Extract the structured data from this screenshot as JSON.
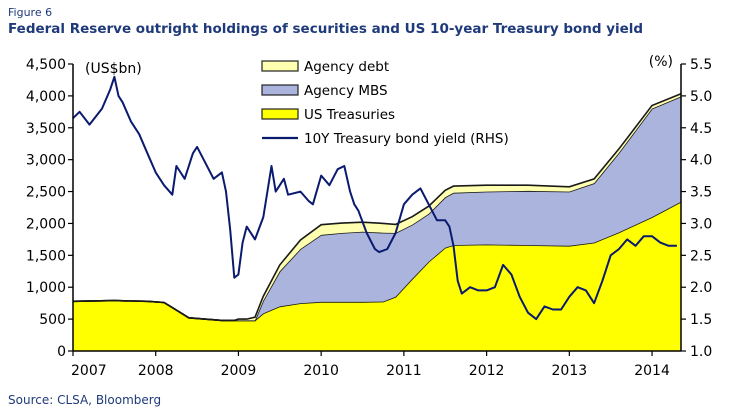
{
  "figure_label": "Figure 6",
  "title": "Federal Reserve outright holdings of securities and US 10-year Treasury bond yield",
  "source": "Source: CLSA, Bloomberg",
  "colors": {
    "treasuries": "#ffff00",
    "mbs": "#aab4dc",
    "agency_debt": "#ffffb0",
    "yield_line": "#0a1a6e",
    "axis": "#000000"
  },
  "chart_data": {
    "type": "area",
    "title": "Federal Reserve outright holdings of securities and US 10-year Treasury bond yield",
    "lhs_unit_label": "(US$bn)",
    "rhs_unit_label": "(%)",
    "ylim": [
      0,
      4500
    ],
    "y2lim": [
      1.0,
      5.5
    ],
    "xlim": [
      2007.0,
      2014.35
    ],
    "y_ticks": [
      "0",
      "500",
      "1,000",
      "1,500",
      "2,000",
      "2,500",
      "3,000",
      "3,500",
      "4,000",
      "4,500"
    ],
    "y2_ticks": [
      "1.0",
      "1.5",
      "2.0",
      "2.5",
      "3.0",
      "3.5",
      "4.0",
      "4.5",
      "5.0",
      "5.5"
    ],
    "x_ticks": [
      "2007",
      "2008",
      "2009",
      "2010",
      "2011",
      "2012",
      "2013",
      "2014"
    ],
    "legend": [
      "Agency debt",
      "Agency MBS",
      "US Treasuries",
      "10Y Treasury bond yield (RHS)"
    ],
    "x": [
      2007.0,
      2007.5,
      2007.9,
      2008.1,
      2008.2,
      2008.4,
      2008.8,
      2008.95,
      2009.0,
      2009.1,
      2009.2,
      2009.3,
      2009.5,
      2009.75,
      2010.0,
      2010.25,
      2010.5,
      2010.75,
      2010.9,
      2011.1,
      2011.3,
      2011.5,
      2011.6,
      2012.0,
      2012.5,
      2013.0,
      2013.3,
      2013.6,
      2014.0,
      2014.35
    ],
    "series": [
      {
        "name": "US Treasuries",
        "values": [
          780,
          790,
          780,
          760,
          680,
          520,
          480,
          480,
          480,
          480,
          480,
          590,
          700,
          750,
          770,
          770,
          770,
          775,
          850,
          1130,
          1400,
          1620,
          1660,
          1670,
          1660,
          1650,
          1700,
          1860,
          2100,
          2340
        ]
      },
      {
        "name": "Agency MBS",
        "values": [
          0,
          0,
          0,
          0,
          0,
          0,
          0,
          0,
          0,
          0,
          0,
          200,
          550,
          850,
          1050,
          1080,
          1100,
          1080,
          1000,
          850,
          750,
          790,
          820,
          830,
          850,
          850,
          930,
          1250,
          1700,
          1650
        ]
      },
      {
        "name": "Agency debt",
        "values": [
          0,
          0,
          0,
          0,
          0,
          0,
          0,
          0,
          20,
          20,
          50,
          70,
          100,
          140,
          160,
          155,
          150,
          145,
          135,
          125,
          120,
          110,
          105,
          100,
          90,
          75,
          68,
          60,
          50,
          45
        ]
      }
    ],
    "yield_rhs": {
      "name": "10Y Treasury bond yield (RHS)",
      "x": [
        2007.0,
        2007.08,
        2007.2,
        2007.35,
        2007.45,
        2007.5,
        2007.55,
        2007.6,
        2007.7,
        2007.8,
        2007.9,
        2008.0,
        2008.1,
        2008.2,
        2008.25,
        2008.35,
        2008.45,
        2008.5,
        2008.6,
        2008.7,
        2008.8,
        2008.85,
        2008.9,
        2008.95,
        2009.0,
        2009.05,
        2009.1,
        2009.2,
        2009.3,
        2009.4,
        2009.45,
        2009.55,
        2009.6,
        2009.75,
        2009.85,
        2009.9,
        2010.0,
        2010.1,
        2010.2,
        2010.28,
        2010.35,
        2010.4,
        2010.45,
        2010.55,
        2010.65,
        2010.7,
        2010.8,
        2010.9,
        2011.0,
        2011.1,
        2011.2,
        2011.3,
        2011.4,
        2011.5,
        2011.55,
        2011.6,
        2011.65,
        2011.7,
        2011.8,
        2011.9,
        2012.0,
        2012.1,
        2012.2,
        2012.3,
        2012.4,
        2012.5,
        2012.6,
        2012.7,
        2012.8,
        2012.9,
        2013.0,
        2013.1,
        2013.2,
        2013.3,
        2013.4,
        2013.5,
        2013.6,
        2013.7,
        2013.8,
        2013.9,
        2014.0,
        2014.1,
        2014.2,
        2014.3
      ],
      "values": [
        4.65,
        4.75,
        4.55,
        4.8,
        5.1,
        5.3,
        5.0,
        4.9,
        4.6,
        4.4,
        4.1,
        3.8,
        3.6,
        3.45,
        3.9,
        3.7,
        4.1,
        4.2,
        3.95,
        3.7,
        3.8,
        3.5,
        2.9,
        2.15,
        2.2,
        2.7,
        2.95,
        2.75,
        3.1,
        3.9,
        3.5,
        3.7,
        3.45,
        3.5,
        3.35,
        3.3,
        3.75,
        3.6,
        3.85,
        3.9,
        3.5,
        3.3,
        3.2,
        2.85,
        2.6,
        2.55,
        2.6,
        2.85,
        3.3,
        3.45,
        3.55,
        3.3,
        3.05,
        3.05,
        2.95,
        2.65,
        2.1,
        1.9,
        2.0,
        1.95,
        1.95,
        2.0,
        2.35,
        2.2,
        1.85,
        1.6,
        1.5,
        1.7,
        1.65,
        1.65,
        1.85,
        2.0,
        1.95,
        1.75,
        2.1,
        2.5,
        2.6,
        2.75,
        2.65,
        2.8,
        2.8,
        2.7,
        2.65,
        2.65
      ]
    }
  }
}
